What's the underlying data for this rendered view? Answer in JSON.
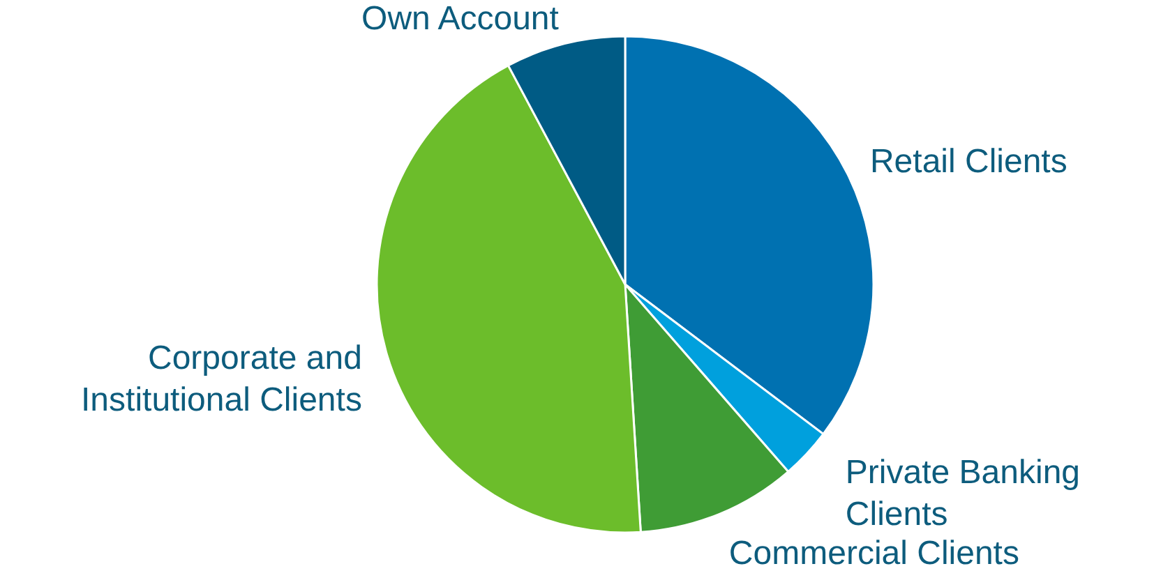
{
  "chart_data": {
    "type": "pie",
    "categories": [
      "Retail Clients",
      "Private Banking Clients",
      "Commercial Clients",
      "Corporate and Institutional Clients",
      "Own Account"
    ],
    "values": [
      35.3,
      3.3,
      10.4,
      43.2,
      7.8
    ],
    "colors": [
      "#0071b1",
      "#00a0dd",
      "#3f9c35",
      "#6cbd2b",
      "#005b85"
    ]
  }
}
